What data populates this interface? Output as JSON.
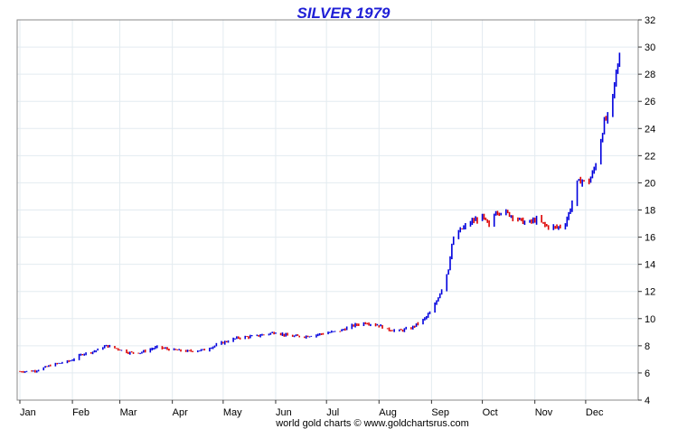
{
  "chart_data": {
    "type": "ohlc",
    "title": "SILVER 1979",
    "footer": "world gold charts © www.goldchartsrus.com",
    "y_axis": {
      "position": "right",
      "min": 4,
      "max": 32,
      "step": 2,
      "ticks": [
        "4",
        "6",
        "8",
        "10",
        "12",
        "14",
        "16",
        "18",
        "20",
        "22",
        "24",
        "26",
        "28",
        "30",
        "32"
      ]
    },
    "x_axis": {
      "ticks": [
        {
          "label": "Jan",
          "x": 1
        },
        {
          "label": "Feb",
          "x": 32
        },
        {
          "label": "Mar",
          "x": 60
        },
        {
          "label": "Apr",
          "x": 91
        },
        {
          "label": "May",
          "x": 121
        },
        {
          "label": "Jun",
          "x": 152
        },
        {
          "label": "Jul",
          "x": 182
        },
        {
          "label": "Aug",
          "x": 213
        },
        {
          "label": "Sep",
          "x": 244
        },
        {
          "label": "Oct",
          "x": 274
        },
        {
          "label": "Nov",
          "x": 305
        },
        {
          "label": "Dec",
          "x": 335
        }
      ],
      "range": [
        1,
        366
      ]
    },
    "grid": true,
    "up_color": "#0000dd",
    "down_color": "#dd0000",
    "series_points": [
      [
        1,
        6.1
      ],
      [
        10,
        6.15
      ],
      [
        20,
        6.6
      ],
      [
        31,
        6.9
      ],
      [
        38,
        7.4
      ],
      [
        45,
        7.6
      ],
      [
        52,
        8.0
      ],
      [
        58,
        7.8
      ],
      [
        65,
        7.5
      ],
      [
        72,
        7.5
      ],
      [
        82,
        7.9
      ],
      [
        91,
        7.7
      ],
      [
        100,
        7.6
      ],
      [
        110,
        7.7
      ],
      [
        120,
        8.2
      ],
      [
        130,
        8.6
      ],
      [
        140,
        8.7
      ],
      [
        152,
        9.0
      ],
      [
        160,
        8.7
      ],
      [
        170,
        8.7
      ],
      [
        180,
        8.9
      ],
      [
        190,
        9.1
      ],
      [
        198,
        9.5
      ],
      [
        205,
        9.7
      ],
      [
        213,
        9.5
      ],
      [
        218,
        9.2
      ],
      [
        225,
        9.1
      ],
      [
        232,
        9.3
      ],
      [
        240,
        10.0
      ],
      [
        245,
        10.7
      ],
      [
        248,
        11.6
      ],
      [
        251,
        12.5
      ],
      [
        254,
        13.7
      ],
      [
        256,
        15.5
      ],
      [
        259,
        16.3
      ],
      [
        262,
        16.6
      ],
      [
        267,
        17.1
      ],
      [
        274,
        17.5
      ],
      [
        278,
        16.8
      ],
      [
        282,
        17.9
      ],
      [
        288,
        17.8
      ],
      [
        294,
        17.4
      ],
      [
        300,
        17.0
      ],
      [
        306,
        17.3
      ],
      [
        312,
        16.8
      ],
      [
        318,
        16.7
      ],
      [
        323,
        17.0
      ],
      [
        327,
        18.5
      ],
      [
        330,
        20.0
      ],
      [
        333,
        20.2
      ],
      [
        336,
        19.8
      ],
      [
        340,
        21.0
      ],
      [
        343,
        22.5
      ],
      [
        346,
        24.5
      ],
      [
        349,
        25.0
      ],
      [
        350,
        25.3
      ],
      [
        352,
        27.3
      ],
      [
        354,
        28.7
      ],
      [
        355,
        29.5
      ]
    ]
  }
}
